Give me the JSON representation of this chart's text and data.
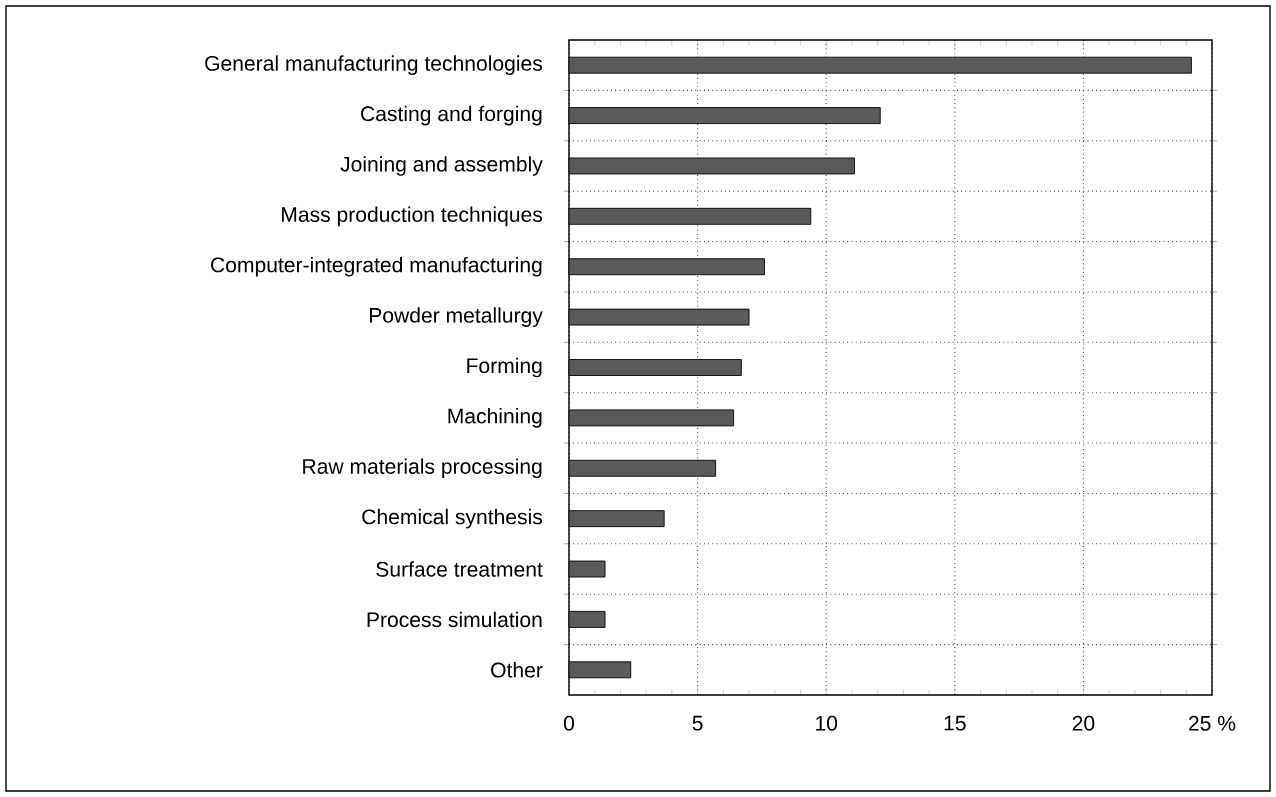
{
  "chart_data": {
    "type": "bar",
    "orientation": "horizontal",
    "categories": [
      "General manufacturing technologies",
      "Casting and forging",
      "Joining and assembly",
      "Mass production techniques",
      "Computer-integrated manufacturing",
      "Powder metallurgy",
      "Forming",
      "Machining",
      "Raw materials processing",
      "Chemical synthesis",
      "Surface treatment",
      "Process simulation",
      "Other"
    ],
    "values": [
      24.2,
      12.1,
      11.1,
      9.4,
      7.6,
      7.0,
      6.7,
      6.4,
      5.7,
      3.7,
      1.4,
      1.4,
      2.4
    ],
    "color": "#5a5a5a",
    "xlim": [
      0,
      25
    ],
    "xticks": [
      0,
      5,
      10,
      15,
      20,
      {
        "value": 25,
        "label": "25 %"
      }
    ],
    "grid": true
  }
}
